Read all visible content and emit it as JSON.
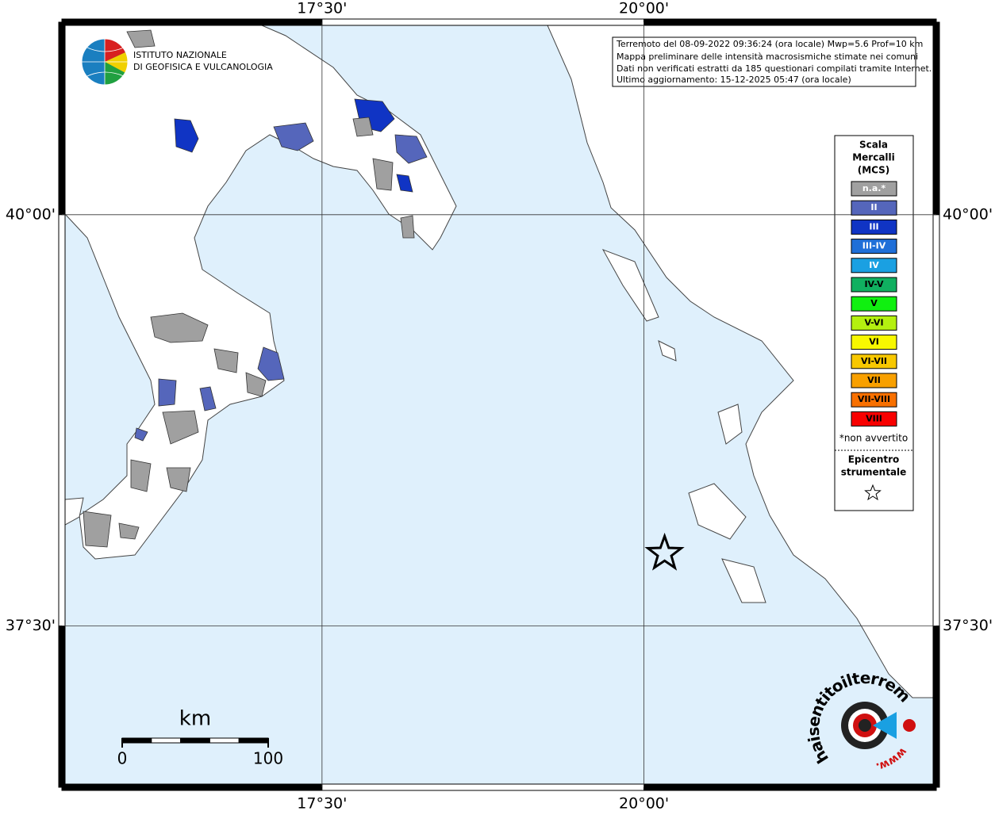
{
  "map": {
    "xlim": [
      15.48,
      22.27
    ],
    "ylim": [
      36.52,
      41.17
    ],
    "xticks": [
      {
        "value": 17.5,
        "label": "17°30'"
      },
      {
        "value": 20,
        "label": "20°00'"
      }
    ],
    "yticks": [
      {
        "value": 40,
        "label": "40°00'"
      },
      {
        "value": 37.5,
        "label": "37°30'"
      }
    ],
    "epicenter": {
      "lon": 20.16,
      "lat": 37.94
    }
  },
  "info": {
    "lines": [
      "Terremoto del 08-09-2022 09:36:24 (ora locale) Mwp=5.6 Prof=10 km",
      "Mappa preliminare delle intensità macrosismiche stimate nei comuni",
      "Dati non verificati estratti da 185 questionari compilati tramite Internet.",
      "Ultimo aggiornamento: 15-12-2025 05:47 (ora locale)"
    ]
  },
  "logo": {
    "lines": [
      "ISTITUTO NAZIONALE",
      "DI GEOFISICA E VULCANOLOGIA"
    ]
  },
  "legend": {
    "title": [
      "Scala",
      "Mercalli",
      "(MCS)"
    ],
    "items": [
      {
        "label": "n.a.*",
        "color": "#a0a0a0",
        "text_color": "#ffffff"
      },
      {
        "label": "II",
        "color": "#5566bb",
        "text_color": "#ffffff"
      },
      {
        "label": "III",
        "color": "#1034c4",
        "text_color": "#ffffff"
      },
      {
        "label": "III-IV",
        "color": "#1f6fd8",
        "text_color": "#ffffff"
      },
      {
        "label": "IV",
        "color": "#1aa0e2",
        "text_color": "#ffffff"
      },
      {
        "label": "IV-V",
        "color": "#10b060",
        "text_color": "#000000"
      },
      {
        "label": "V",
        "color": "#10f010",
        "text_color": "#000000"
      },
      {
        "label": "V-VI",
        "color": "#b4f010",
        "text_color": "#000000"
      },
      {
        "label": "VI",
        "color": "#f8f800",
        "text_color": "#000000"
      },
      {
        "label": "VI-VII",
        "color": "#f8c800",
        "text_color": "#000000"
      },
      {
        "label": "VII",
        "color": "#f8a000",
        "text_color": "#000000"
      },
      {
        "label": "VII-VIII",
        "color": "#f87000",
        "text_color": "#000000"
      },
      {
        "label": "VIII",
        "color": "#f80000",
        "text_color": "#000000"
      }
    ],
    "note": "*non avvertito",
    "epicenter_title": [
      "Epicentro",
      "strumentale"
    ]
  },
  "scale_bar": {
    "unit": "km",
    "ticks": [
      0,
      100
    ]
  },
  "watermark": {
    "text": "haisentitoilterremoto.it",
    "prefix": "www."
  }
}
